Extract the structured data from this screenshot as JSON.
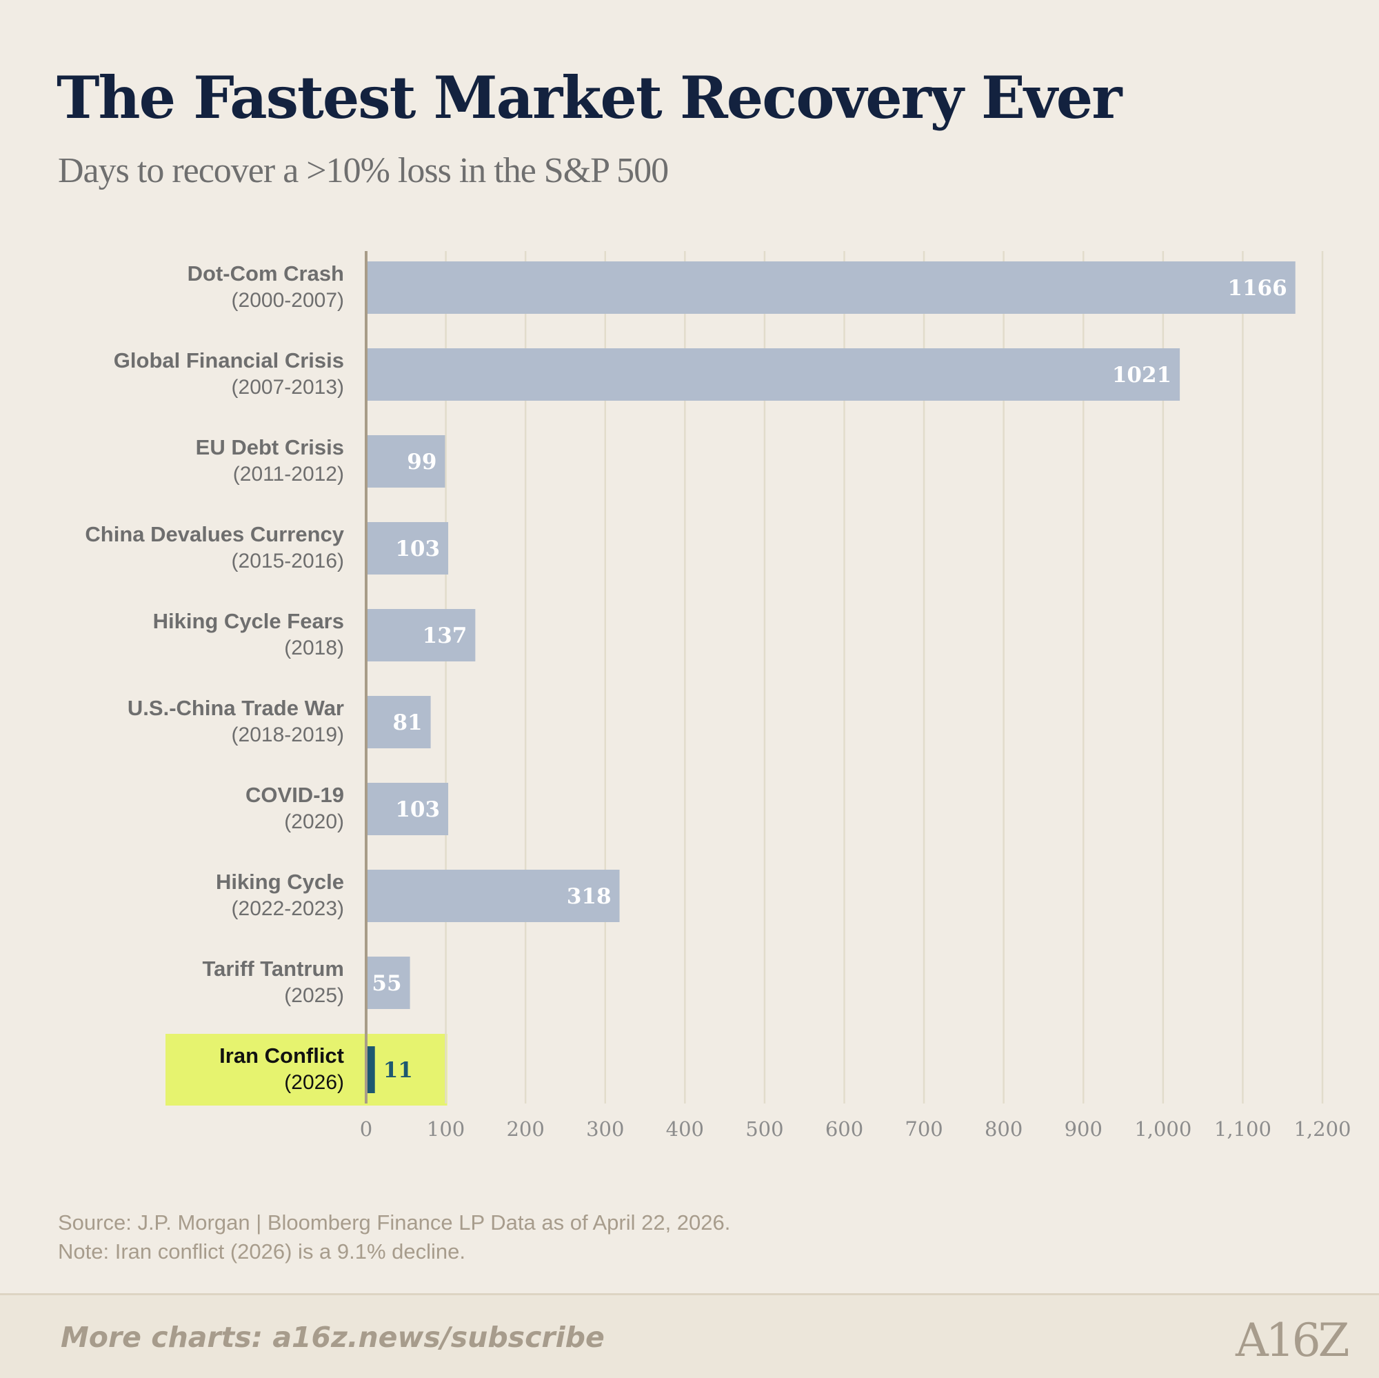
{
  "title": "The Fastest Market Recovery Ever",
  "subtitle": "Days to recover a >10% loss in the S&P 500",
  "source_line": "Source: J.P. Morgan | Bloomberg Finance LP Data as of April 22, 2026.",
  "note_line": "Note: Iran conflict (2026) is a 9.1% decline.",
  "footer_link": "More charts: a16z.news/subscribe",
  "logo_text": "A16Z",
  "colors": {
    "background": "#f1ece4",
    "bar": "#b1bccd",
    "highlight_bar": "#1d5870",
    "highlight_band": "#e6f36f",
    "gridline": "#e2dccb",
    "axis": "#a89c88",
    "label": "#6e6e6e",
    "highlight_label": "#111111",
    "title": "#13223f"
  },
  "chart_data": {
    "type": "bar",
    "orientation": "horizontal",
    "categories": [
      {
        "name": "Dot-Com Crash",
        "period": "(2000-2007)"
      },
      {
        "name": "Global Financial Crisis",
        "period": "(2007-2013)"
      },
      {
        "name": "EU Debt Crisis",
        "period": "(2011-2012)"
      },
      {
        "name": "China Devalues Currency",
        "period": "(2015-2016)"
      },
      {
        "name": "Hiking Cycle Fears",
        "period": "(2018)"
      },
      {
        "name": "U.S.-China Trade War",
        "period": "(2018-2019)"
      },
      {
        "name": "COVID-19",
        "period": "(2020)"
      },
      {
        "name": "Hiking Cycle",
        "period": "(2022-2023)"
      },
      {
        "name": "Tariff Tantrum",
        "period": "(2025)"
      },
      {
        "name": "Iran Conflict",
        "period": "(2026)"
      }
    ],
    "values": [
      1166,
      1021,
      99,
      103,
      137,
      81,
      103,
      318,
      55,
      11
    ],
    "data_labels": [
      "1166",
      "1021",
      "99",
      "103",
      "137",
      "81",
      "103",
      "318",
      "55",
      "11"
    ],
    "highlight_index": 9,
    "xlim": [
      0,
      1200
    ],
    "x_ticks": [
      0,
      100,
      200,
      300,
      400,
      500,
      600,
      700,
      800,
      900,
      1000,
      1100,
      1200
    ],
    "x_tick_labels": [
      "0",
      "100",
      "200",
      "300",
      "400",
      "500",
      "600",
      "700",
      "800",
      "900",
      "1,000",
      "1,100",
      "1,200"
    ],
    "grid": true
  }
}
